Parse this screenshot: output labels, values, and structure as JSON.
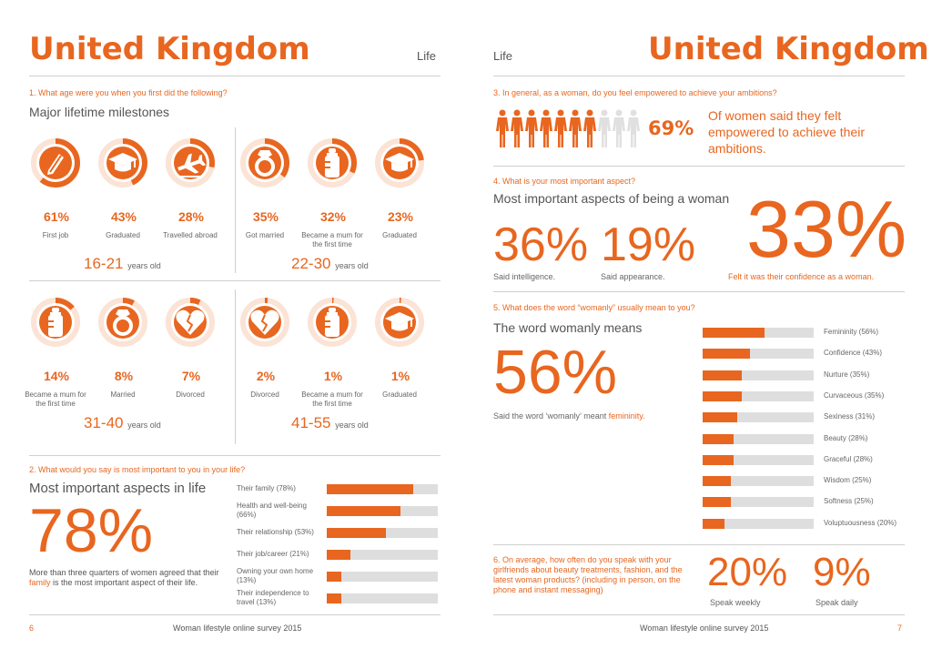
{
  "left": {
    "title": "United Kingdom",
    "section": "Life",
    "q1": "1. What age were you when you first did the following?",
    "q1_heading": "Major lifetime milestones",
    "groups": [
      {
        "age": "16-21",
        "age_unit": "years old",
        "items": [
          {
            "pct": "61%",
            "label": "First job",
            "value": 61,
            "icon": "pen-icon"
          },
          {
            "pct": "43%",
            "label": "Graduated",
            "value": 43,
            "icon": "graduation-cap-icon"
          },
          {
            "pct": "28%",
            "label": "Travelled abroad",
            "value": 28,
            "icon": "airplane-icon"
          }
        ]
      },
      {
        "age": "22-30",
        "age_unit": "years old",
        "items": [
          {
            "pct": "35%",
            "label": "Got married",
            "value": 35,
            "icon": "ring-icon"
          },
          {
            "pct": "32%",
            "label": "Became a mum for the first time",
            "value": 32,
            "icon": "baby-bottle-icon"
          },
          {
            "pct": "23%",
            "label": "Graduated",
            "value": 23,
            "icon": "graduation-cap-icon"
          }
        ]
      },
      {
        "age": "31-40",
        "age_unit": "years old",
        "items": [
          {
            "pct": "14%",
            "label": "Became a mum for the first time",
            "value": 14,
            "icon": "baby-bottle-icon"
          },
          {
            "pct": "8%",
            "label": "Married",
            "value": 8,
            "icon": "ring-icon"
          },
          {
            "pct": "7%",
            "label": "Divorced",
            "value": 7,
            "icon": "broken-heart-icon"
          }
        ]
      },
      {
        "age": "41-55",
        "age_unit": "years old",
        "items": [
          {
            "pct": "2%",
            "label": "Divorced",
            "value": 2,
            "icon": "broken-heart-icon"
          },
          {
            "pct": "1%",
            "label": "Became a mum for the first time",
            "value": 1,
            "icon": "baby-bottle-icon"
          },
          {
            "pct": "1%",
            "label": "Graduated",
            "value": 1,
            "icon": "graduation-cap-icon"
          }
        ]
      }
    ],
    "q2": "2. What would you say is most important to you in your life?",
    "q2_heading": "Most important aspects in life",
    "q2_big": "78%",
    "q2_text_pre": "More than three quarters of women agreed that their ",
    "q2_text_hl": "family",
    "q2_text_post": " is the most important aspect of their life.",
    "q2_bars": [
      {
        "label": "Their family (78%)",
        "value": 78
      },
      {
        "label": "Health and well-being (66%)",
        "value": 66
      },
      {
        "label": "Their relationship (53%)",
        "value": 53
      },
      {
        "label": "Their job/career (21%)",
        "value": 21
      },
      {
        "label": "Owning your own home (13%)",
        "value": 13
      },
      {
        "label": "Their independence to travel  (13%)",
        "value": 13
      }
    ],
    "footer_page": "6",
    "footer_text": "Woman lifestyle online survey 2015"
  },
  "right": {
    "title": "United Kingdom",
    "section": "Life",
    "q3": "3. In general, as a woman, do you feel empowered to achieve your ambitions?",
    "q3_pct": "69%",
    "q3_people_filled": 7,
    "q3_people_total": 10,
    "q3_text": "Of women said they felt empowered to achieve their ambitions.",
    "q4": "4. What is your most important aspect?",
    "q4_heading": "Most important aspects of being a woman",
    "q4_a_pct": "36%",
    "q4_a_label": "Said intelligence.",
    "q4_b_pct": "19%",
    "q4_b_label": "Said appearance.",
    "q4_c_pct": "33%",
    "q4_c_label": "Felt it was their confidence as a woman.",
    "q5": "5. What does the word “womanly” usually mean to you?",
    "q5_heading": "The word womanly means",
    "q5_big": "56%",
    "q5_text_pre": "Said the word ‘womanly’ meant ",
    "q5_text_hl": "femininity.",
    "q5_bars": [
      {
        "label": "Femininity (56%)",
        "value": 56
      },
      {
        "label": "Confidence (43%)",
        "value": 43
      },
      {
        "label": "Nurture  (35%)",
        "value": 35
      },
      {
        "label": "Curvaceous  (35%)",
        "value": 35
      },
      {
        "label": "Sexiness  (31%)",
        "value": 31
      },
      {
        "label": "Beauty   (28%)",
        "value": 28
      },
      {
        "label": "Graceful (28%)",
        "value": 28
      },
      {
        "label": "Wisdom  (25%)",
        "value": 25
      },
      {
        "label": "Softness  (25%)",
        "value": 25
      },
      {
        "label": "Voluptuousness  (20%)",
        "value": 20
      }
    ],
    "q6": "6. On average, how often do you speak with your girlfriends about beauty treatments, fashion, and the latest woman products? (including in person, on the phone and instant messaging)",
    "q6_a_pct": "20%",
    "q6_a_label": "Speak weekly",
    "q6_b_pct": "9%",
    "q6_b_label": "Speak daily",
    "footer_page": "7",
    "footer_text": "Woman lifestyle online survey 2015"
  },
  "colors": {
    "accent": "#e8661f",
    "ring_bg": "#fbe3d5",
    "bar_bg": "#dedede",
    "person_off": "#e0e0e0"
  }
}
